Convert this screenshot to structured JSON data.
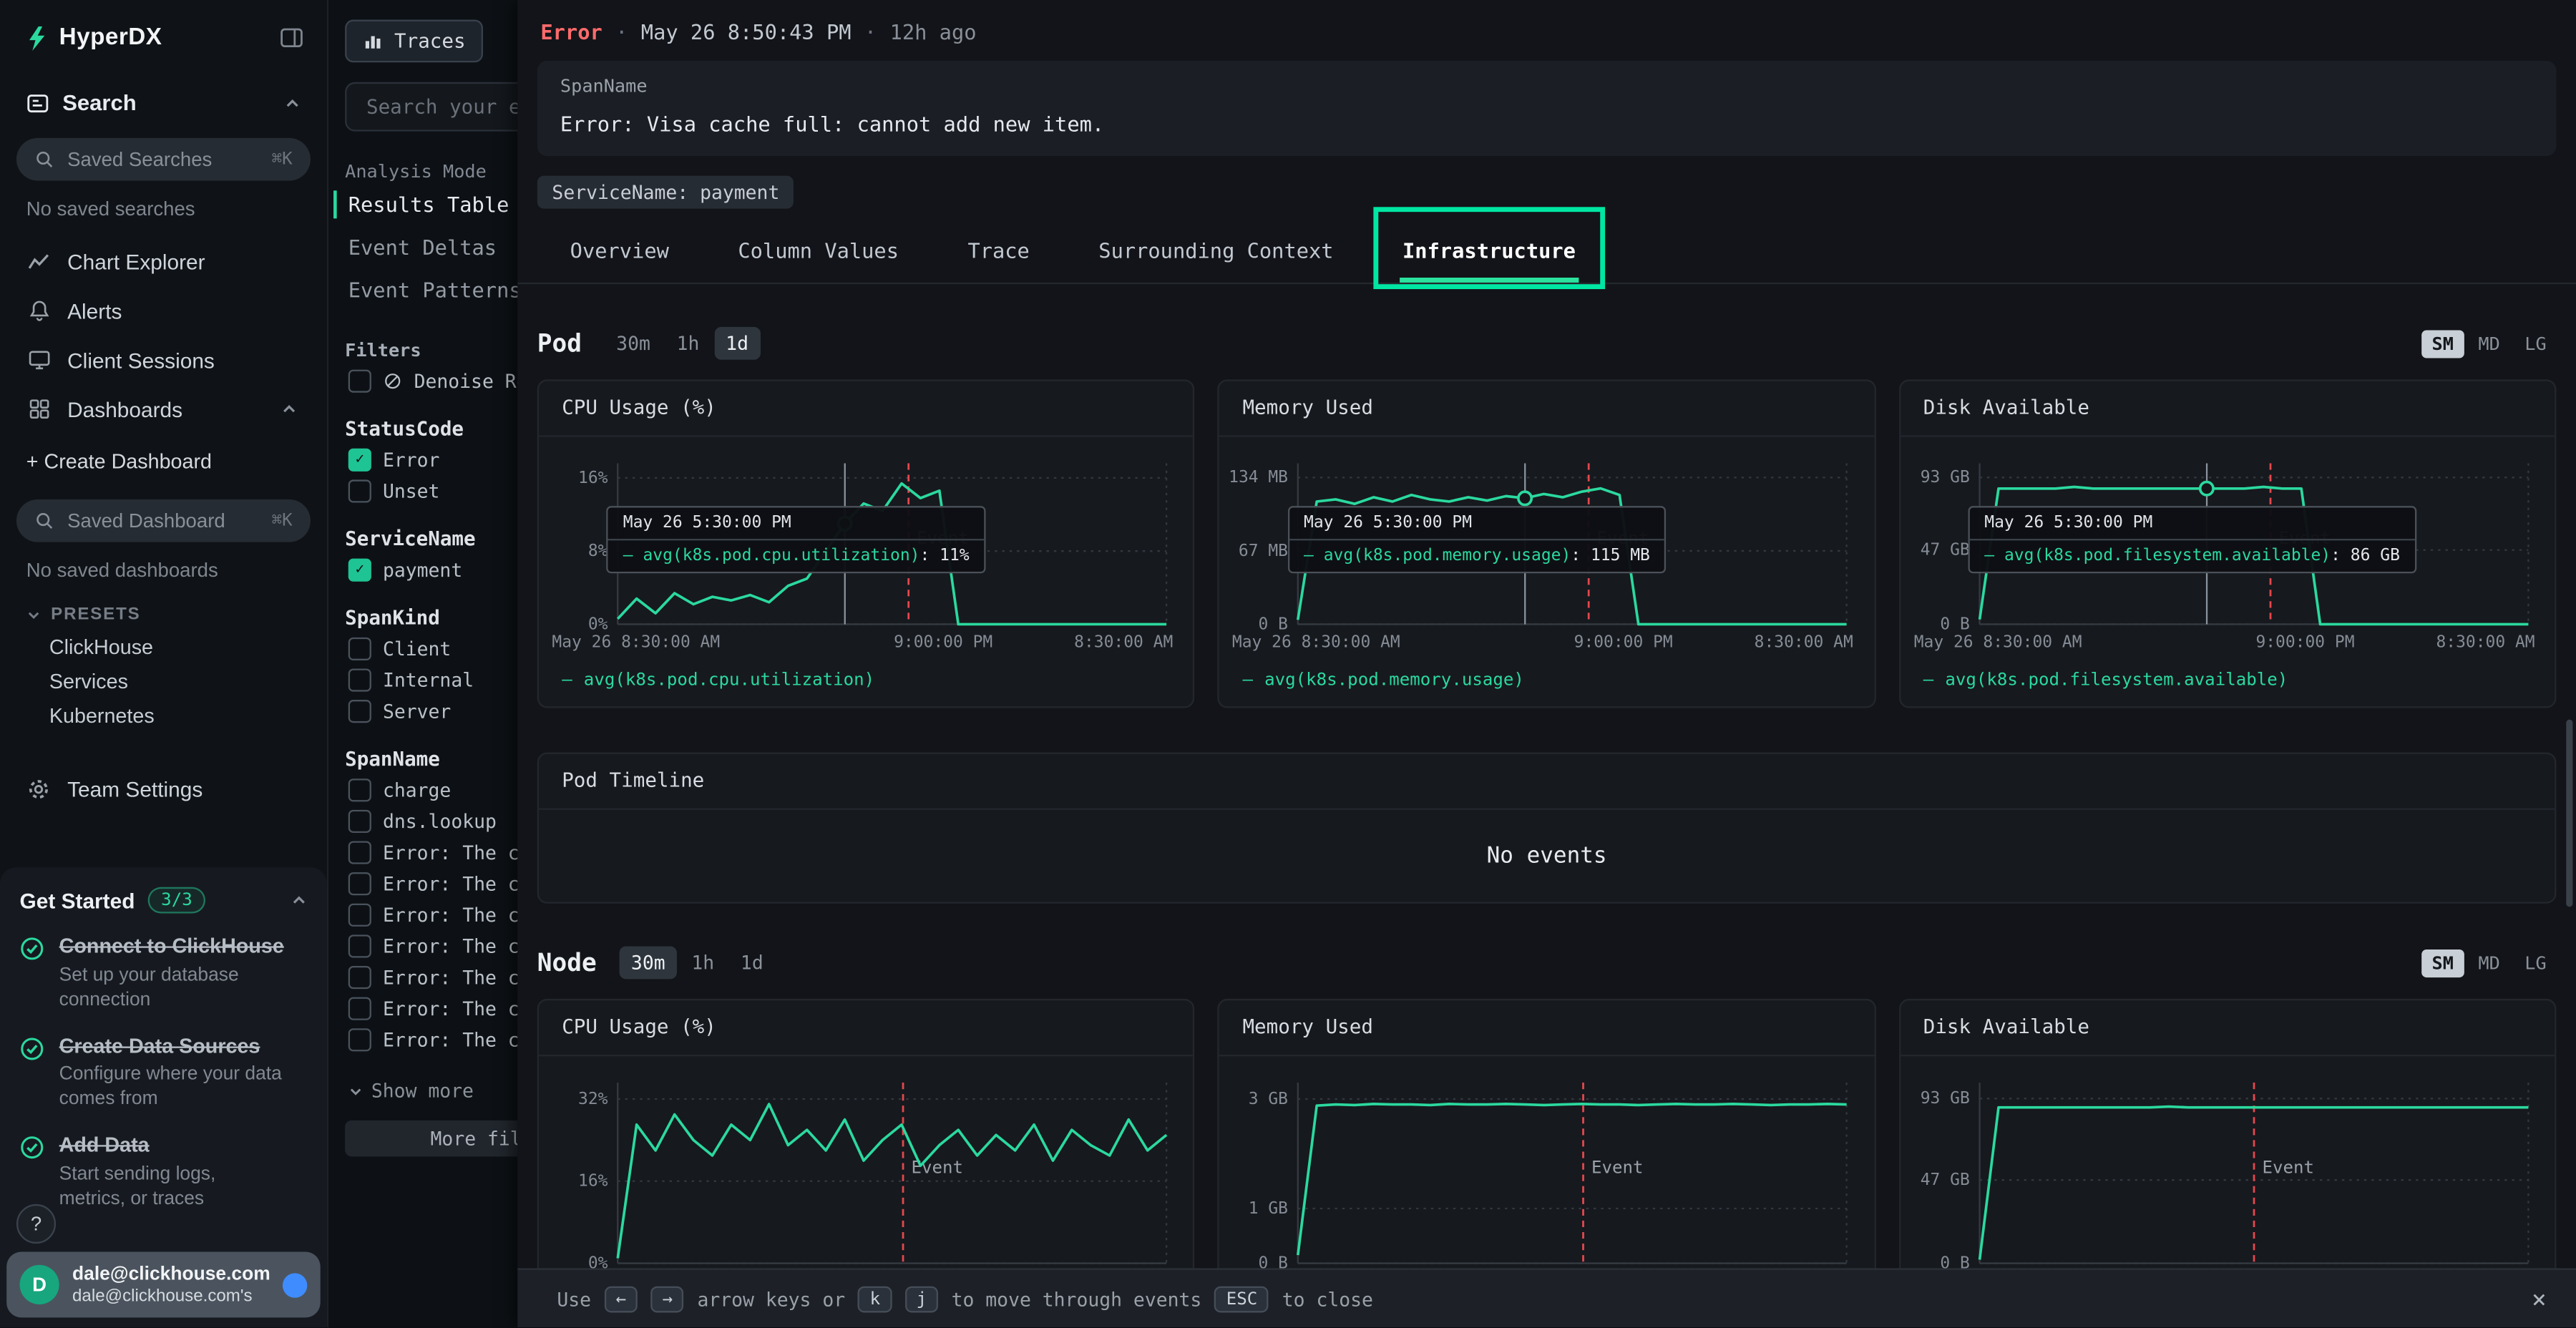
{
  "colors": {
    "accent_green": "#2bd99e",
    "event_red": "#e5484d",
    "error_text": "#ff6b6b",
    "annotation_green": "#00e6a3",
    "checkbox_teal": "#1fc494"
  },
  "glyphs": {
    "dot": "·",
    "dash": "—",
    "check": "✓",
    "close": "×",
    "question": "?",
    "left_arrow": "←",
    "right_arrow": "→"
  },
  "sidebar": {
    "logo": "HyperDX",
    "search_section": "Search",
    "saved_searches_placeholder": "Saved Searches",
    "saved_searches_shortcut": "⌘K",
    "no_saved_searches": "No saved searches",
    "nav": [
      "Chart Explorer",
      "Alerts",
      "Client Sessions",
      "Dashboards"
    ],
    "create_dashboard": "+ Create Dashboard",
    "saved_dashboards_placeholder": "Saved Dashboards",
    "saved_dashboards_shortcut": "⌘K",
    "no_saved_dashboards": "No saved dashboards",
    "presets_label": "PRESETS",
    "presets": [
      "ClickHouse",
      "Services",
      "Kubernetes"
    ],
    "team_settings": "Team Settings",
    "get_started": {
      "title": "Get Started",
      "badge": "3/3",
      "items": [
        {
          "title": "Connect to ClickHouse",
          "subtitle": "Set up your database connection"
        },
        {
          "title": "Create Data Sources",
          "subtitle": "Configure where your data comes from"
        },
        {
          "title": "Add Data",
          "subtitle": "Start sending logs, metrics, or traces"
        }
      ]
    },
    "user": {
      "initial": "D",
      "name": "dale@clickhouse.com",
      "org": "dale@clickhouse.com's"
    }
  },
  "search_panel": {
    "source_label": "Traces",
    "search_placeholder": "Search your e",
    "analysis_mode_label": "Analysis Mode",
    "modes": [
      "Results Table",
      "Event Deltas",
      "Event Patterns"
    ],
    "filters_label": "Filters",
    "filters": {
      "denoise": "Denoise Re",
      "status_code": {
        "title": "StatusCode",
        "error": "Error",
        "unset": "Unset"
      },
      "service_name": {
        "title": "ServiceName",
        "payment": "payment"
      },
      "span_kind": {
        "title": "SpanKind",
        "client": "Client",
        "internal": "Internal",
        "server": "Server"
      },
      "span_name": {
        "title": "SpanName",
        "options": [
          "charge",
          "dns.lookup",
          "Error: The cr",
          "Error: The cr",
          "Error: The cr",
          "Error: The cr",
          "Error: The cr",
          "Error: The cr",
          "Error: The cr"
        ]
      }
    },
    "show_more": "Show more",
    "more_filters": "More fil"
  },
  "panel": {
    "status": "Error",
    "timestamp": "May 26 8:50:43 PM",
    "ago": "12h ago",
    "span_label": "SpanName",
    "span_message": "Error: Visa cache full: cannot add new item.",
    "service_chip": "ServiceName: payment",
    "tabs": [
      "Overview",
      "Column Values",
      "Trace",
      "Surrounding Context",
      "Infrastructure"
    ],
    "pod": {
      "title": "Pod",
      "ranges": [
        "30m",
        "1h",
        "1d"
      ],
      "sizes": [
        "SM",
        "MD",
        "LG"
      ]
    },
    "node": {
      "title": "Node",
      "ranges": [
        "30m",
        "1h",
        "1d"
      ],
      "sizes": [
        "SM",
        "MD",
        "LG"
      ]
    },
    "timeline": {
      "title": "Pod Timeline",
      "empty": "No events"
    },
    "footer": {
      "use": "Use",
      "or_text": "arrow keys or",
      "k": "k",
      "j": "j",
      "move_text": "to move through events",
      "esc": "ESC",
      "close_text": "to close"
    }
  },
  "chart_data": [
    {
      "type": "line",
      "title": "CPU Usage (%)",
      "legend": "avg(k8s.pod.cpu.utilization)",
      "ymax": 17.6,
      "yticks": [
        {
          "v": 16,
          "label": "16%"
        },
        {
          "v": 8,
          "label": "8%"
        },
        {
          "v": 0,
          "label": "0%"
        }
      ],
      "xticks": [
        {
          "pos": 0,
          "label": "May 26 8:30:00 AM",
          "anchor": "start"
        },
        {
          "pos": 0.63,
          "label": "9:00:00 PM",
          "anchor": "middle"
        },
        {
          "pos": 1,
          "label": "8:30:00 AM",
          "anchor": "end"
        }
      ],
      "values": [
        0.6,
        2.8,
        1.2,
        3.4,
        2.2,
        3,
        2.6,
        3.2,
        2.4,
        4.2,
        5,
        8,
        11,
        13.2,
        12.4,
        15.4,
        13.8,
        14.6,
        0,
        0,
        0,
        0,
        0,
        0,
        0,
        0,
        0,
        0,
        0,
        0
      ],
      "event_x": 0.53,
      "event_label": "Event",
      "marker_x": 0.414,
      "tooltip": {
        "time": "May 26 5:30:00 PM",
        "series": "avg(k8s.pod.cpu.utilization)",
        "value": "11%"
      }
    },
    {
      "type": "line",
      "title": "Memory Used",
      "legend": "avg(k8s.pod.memory.usage)",
      "ymax": 147,
      "yticks": [
        {
          "v": 134,
          "label": "134 MB"
        },
        {
          "v": 67,
          "label": "67 MB"
        },
        {
          "v": 0,
          "label": "0 B"
        }
      ],
      "xticks": [
        {
          "pos": 0,
          "label": "May 26 8:30:00 AM",
          "anchor": "start"
        },
        {
          "pos": 0.63,
          "label": "9:00:00 PM",
          "anchor": "middle"
        },
        {
          "pos": 1,
          "label": "8:30:00 AM",
          "anchor": "end"
        }
      ],
      "values": [
        4,
        112,
        114,
        110,
        116,
        112,
        118,
        114,
        112,
        116,
        113,
        117,
        115,
        119,
        116,
        121,
        124,
        118,
        0,
        0,
        0,
        0,
        0,
        0,
        0,
        0,
        0,
        0,
        0,
        0
      ],
      "event_x": 0.53,
      "event_label": "Event",
      "marker_x": 0.414,
      "tooltip": {
        "time": "May 26 5:30:00 PM",
        "series": "avg(k8s.pod.memory.usage)",
        "value": "115 MB"
      }
    },
    {
      "type": "line",
      "title": "Disk Available",
      "legend": "avg(k8s.pod.filesystem.available)",
      "ymax": 102,
      "yticks": [
        {
          "v": 93,
          "label": "93 GB"
        },
        {
          "v": 47,
          "label": "47 GB"
        },
        {
          "v": 0,
          "label": "0 B"
        }
      ],
      "xticks": [
        {
          "pos": 0,
          "label": "May 26 8:30:00 AM",
          "anchor": "start"
        },
        {
          "pos": 0.63,
          "label": "9:00:00 PM",
          "anchor": "middle"
        },
        {
          "pos": 1,
          "label": "8:30:00 AM",
          "anchor": "end"
        }
      ],
      "values": [
        3,
        86,
        86,
        86,
        86,
        87,
        86,
        86,
        86,
        86,
        86,
        86,
        86,
        86,
        86,
        87,
        86,
        86,
        0,
        0,
        0,
        0,
        0,
        0,
        0,
        0,
        0,
        0,
        0,
        0
      ],
      "event_x": 0.53,
      "event_label": "Event",
      "marker_x": 0.414,
      "tooltip": {
        "time": "May 26 5:30:00 PM",
        "series": "avg(k8s.pod.filesystem.available)",
        "value": "86 GB"
      }
    },
    {
      "type": "line",
      "title": "CPU Usage (%)",
      "ymax": 35.2,
      "yticks": [
        {
          "v": 32,
          "label": "32%"
        },
        {
          "v": 16,
          "label": "16%"
        },
        {
          "v": 0,
          "label": "0%"
        }
      ],
      "values": [
        1,
        27,
        22,
        29,
        24,
        21,
        27,
        24,
        31,
        23,
        26,
        22,
        28,
        20,
        24,
        27,
        19,
        23,
        26,
        21,
        25,
        22,
        27,
        20,
        26,
        23,
        21,
        28,
        22,
        25
      ],
      "event_x": 0.52,
      "event_label": "Event"
    },
    {
      "type": "line",
      "title": "Memory Used",
      "ymax": 3.3,
      "yticks": [
        {
          "v": 3,
          "label": "3 GB"
        },
        {
          "v": 1,
          "label": "1 GB"
        },
        {
          "v": 0,
          "label": "0 B"
        }
      ],
      "values": [
        0.15,
        2.88,
        2.9,
        2.89,
        2.91,
        2.9,
        2.9,
        2.89,
        2.91,
        2.9,
        2.9,
        2.91,
        2.9,
        2.89,
        2.9,
        2.91,
        2.9,
        2.9,
        2.89,
        2.9,
        2.91,
        2.9,
        2.9,
        2.91,
        2.9,
        2.89,
        2.9,
        2.9,
        2.91,
        2.9
      ],
      "event_x": 0.52,
      "event_label": "Event"
    },
    {
      "type": "line",
      "title": "Disk Available",
      "ymax": 102,
      "yticks": [
        {
          "v": 93,
          "label": "93 GB"
        },
        {
          "v": 47,
          "label": "47 GB"
        },
        {
          "v": 0,
          "label": "0 B"
        }
      ],
      "values": [
        2,
        88,
        88,
        88,
        88,
        88,
        88,
        88,
        88,
        88,
        88.5,
        88,
        88,
        88,
        88,
        88,
        88,
        88,
        88,
        88,
        88,
        88,
        88,
        88,
        88,
        88,
        88,
        88,
        88,
        88
      ],
      "event_x": 0.5,
      "event_label": "Event"
    }
  ]
}
